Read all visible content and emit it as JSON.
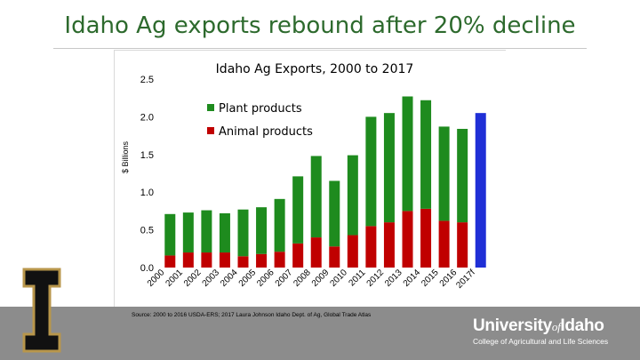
{
  "slide": {
    "title": "Idaho Ag exports rebound after 20% decline",
    "source": "Source: 2000 to 2016 USDA-ERS; 2017 Laura Johnson Idaho Dept. of Ag, Global Trade Atlas"
  },
  "logo": {
    "university": "University",
    "of": "of",
    "idaho": "Idaho",
    "college": "College of Agricultural and Life Sciences",
    "block_letter": "I"
  },
  "colors": {
    "plant": "#1e8b1e",
    "animal": "#c00000",
    "projected": "#1f2fd6",
    "title": "#2d6a2d",
    "footer": "#8c8c8c"
  },
  "chart_data": {
    "type": "bar",
    "stacked": true,
    "title": "Idaho Ag Exports, 2000 to 2017",
    "ylabel": "$ Billions",
    "xlabel": "",
    "ylim": [
      0,
      2.5
    ],
    "yticks": [
      "0.0",
      "0.5",
      "1.0",
      "1.5",
      "2.0",
      "2.5"
    ],
    "grid": false,
    "legend_position": "top-left inside plot",
    "categories": [
      "2000",
      "2001",
      "2002",
      "2003",
      "2004",
      "2005",
      "2006",
      "2007",
      "2008",
      "2009",
      "2010",
      "2011",
      "2012",
      "2013",
      "2014",
      "2015",
      "2016",
      "2017f"
    ],
    "series": [
      {
        "name": "Animal products",
        "values": [
          0.16,
          0.2,
          0.2,
          0.2,
          0.15,
          0.18,
          0.21,
          0.32,
          0.4,
          0.28,
          0.43,
          0.55,
          0.6,
          0.75,
          0.78,
          0.62,
          0.6,
          null
        ]
      },
      {
        "name": "Plant products",
        "values": [
          0.55,
          0.53,
          0.56,
          0.52,
          0.62,
          0.62,
          0.7,
          0.89,
          1.08,
          0.87,
          1.06,
          1.45,
          1.45,
          1.52,
          1.44,
          1.25,
          1.24,
          null
        ]
      }
    ],
    "total_2017f": 2.05
  }
}
